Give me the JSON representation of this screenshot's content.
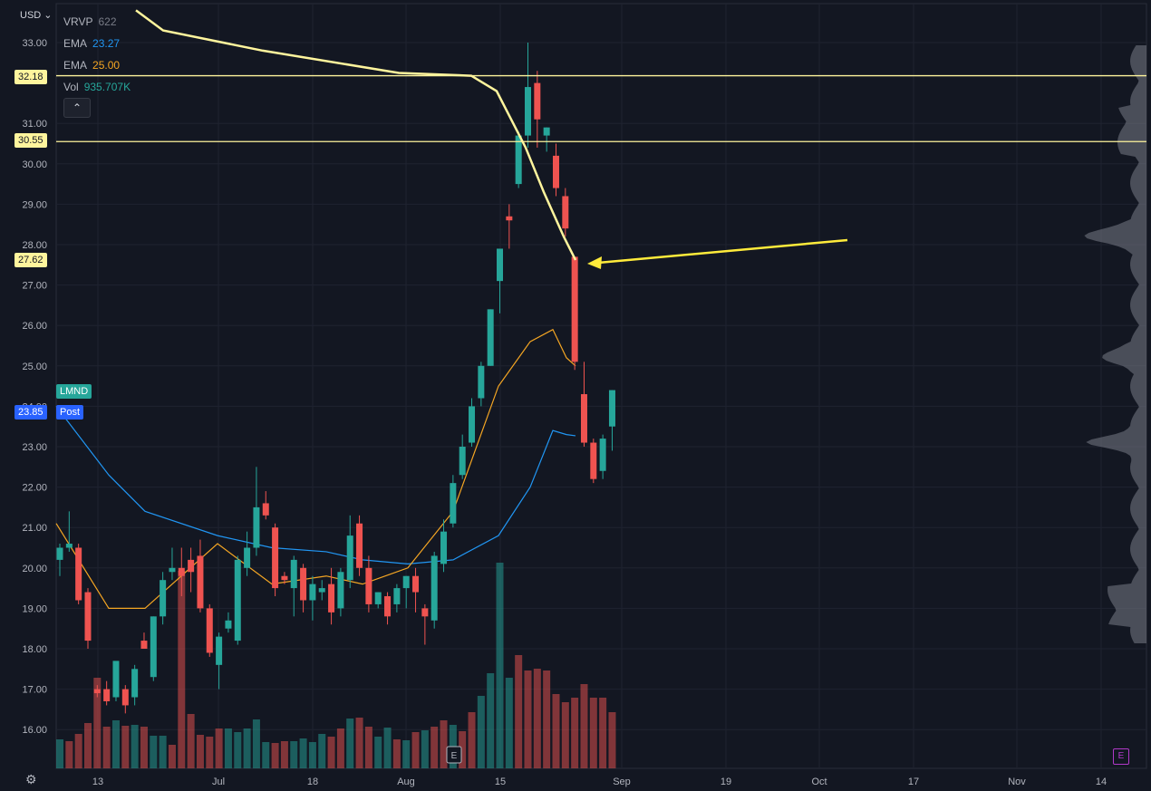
{
  "window": {
    "currency_label": "USD"
  },
  "legend": [
    {
      "label": "VRVP",
      "value": "622",
      "color": "#787b86"
    },
    {
      "label": "EMA",
      "value": "23.27",
      "color": "#2196f3"
    },
    {
      "label": "EMA",
      "value": "25.00",
      "color": "#f5a623"
    },
    {
      "label": "Vol",
      "value": "935.707K",
      "color": "#26a69a"
    }
  ],
  "price_badges": [
    {
      "text": "32.18",
      "bg": "#fff59d",
      "fg": "#131722"
    },
    {
      "text": "30.55",
      "bg": "#fff59d",
      "fg": "#131722"
    },
    {
      "text": "27.62",
      "bg": "#fff59d",
      "fg": "#131722"
    },
    {
      "text": "LMND",
      "bg": "#26a69a",
      "fg": "#ffffff"
    },
    {
      "text": "23.85",
      "bg": "#2962ff",
      "fg": "#ffffff"
    },
    {
      "text": "Post",
      "bg": "#2962ff",
      "fg": "#ffffff"
    }
  ],
  "icons": {
    "settings": "gear-icon",
    "collapse": "chevron-up-icon",
    "earnings": "E"
  },
  "colors": {
    "up": "#26a69a",
    "down": "#ef5350",
    "hline": "#fff59d",
    "ema_fast": "#2196f3",
    "ema_slow": "#f5a623",
    "annotation": "#fff59d"
  },
  "chart_data": {
    "type": "candlestick",
    "symbol": "LMND",
    "y_ticks": [
      "33.00",
      "31.00",
      "30.00",
      "29.00",
      "28.00",
      "27.00",
      "26.00",
      "25.00",
      "24.00",
      "23.00",
      "22.00",
      "21.00",
      "20.00",
      "19.00",
      "18.00",
      "17.00",
      "16.00"
    ],
    "ylim": [
      15.0,
      33.8
    ],
    "x_tick_labels": [
      "13",
      "Jul",
      "18",
      "Aug",
      "15",
      "Sep",
      "19",
      "Oct",
      "17",
      "Nov",
      "14"
    ],
    "horizontal_lines": [
      32.18,
      30.55
    ],
    "candles": [
      [
        20.2,
        20.6,
        19.8,
        20.5
      ],
      [
        20.5,
        21.4,
        20.4,
        20.6
      ],
      [
        20.5,
        20.6,
        19.1,
        19.2
      ],
      [
        19.4,
        19.5,
        18.0,
        18.2
      ],
      [
        17.0,
        17.1,
        16.8,
        16.9
      ],
      [
        17.0,
        17.2,
        16.6,
        16.7
      ],
      [
        16.8,
        17.6,
        16.7,
        17.7
      ],
      [
        17.0,
        17.1,
        16.4,
        16.6
      ],
      [
        16.8,
        17.6,
        16.6,
        17.5
      ],
      [
        18.2,
        18.4,
        18.0,
        18.0
      ],
      [
        17.3,
        18.8,
        17.2,
        18.8
      ],
      [
        18.8,
        19.9,
        18.6,
        19.7
      ],
      [
        19.9,
        20.5,
        19.7,
        20.0
      ],
      [
        20.0,
        20.5,
        19.3,
        19.8
      ],
      [
        20.2,
        20.5,
        19.4,
        19.9
      ],
      [
        20.3,
        20.7,
        18.9,
        19.0
      ],
      [
        19.0,
        19.1,
        17.8,
        17.9
      ],
      [
        17.6,
        18.4,
        17.0,
        18.3
      ],
      [
        18.5,
        18.9,
        18.4,
        18.7
      ],
      [
        18.2,
        20.3,
        18.1,
        20.2
      ],
      [
        20.0,
        20.9,
        19.8,
        20.5
      ],
      [
        20.5,
        22.5,
        20.3,
        21.5
      ],
      [
        21.6,
        21.9,
        21.2,
        21.3
      ],
      [
        21.0,
        21.1,
        19.3,
        19.5
      ],
      [
        19.8,
        19.9,
        19.6,
        19.7
      ],
      [
        19.5,
        20.3,
        18.8,
        20.2
      ],
      [
        20.0,
        20.1,
        18.9,
        19.2
      ],
      [
        19.2,
        19.8,
        18.7,
        19.6
      ],
      [
        19.4,
        19.7,
        19.2,
        19.5
      ],
      [
        19.6,
        20.0,
        18.6,
        18.9
      ],
      [
        19.0,
        20.0,
        18.8,
        19.9
      ],
      [
        19.7,
        21.3,
        19.5,
        20.8
      ],
      [
        21.1,
        21.3,
        19.8,
        20.0
      ],
      [
        20.0,
        20.3,
        18.9,
        19.1
      ],
      [
        19.1,
        19.4,
        19.0,
        19.4
      ],
      [
        19.3,
        19.4,
        18.6,
        18.8
      ],
      [
        19.1,
        19.6,
        18.9,
        19.5
      ],
      [
        19.5,
        19.8,
        19.0,
        19.8
      ],
      [
        19.8,
        20.0,
        18.9,
        19.4
      ],
      [
        19.0,
        19.1,
        18.1,
        18.8
      ],
      [
        18.7,
        20.4,
        18.5,
        20.3
      ],
      [
        20.1,
        21.2,
        19.9,
        20.9
      ],
      [
        21.1,
        22.3,
        21.0,
        22.1
      ],
      [
        22.3,
        23.3,
        22.2,
        23.0
      ],
      [
        23.1,
        24.2,
        23.0,
        24.0
      ],
      [
        24.2,
        25.1,
        24.0,
        25.0
      ],
      [
        25.0,
        26.4,
        25.0,
        26.4
      ],
      [
        27.1,
        27.8,
        26.3,
        27.9
      ],
      [
        28.7,
        29.0,
        27.9,
        28.6
      ],
      [
        29.5,
        30.8,
        29.4,
        30.7
      ],
      [
        30.7,
        33.0,
        30.4,
        31.9
      ],
      [
        32.0,
        32.3,
        30.4,
        31.1
      ],
      [
        30.7,
        30.9,
        30.3,
        30.9
      ],
      [
        30.2,
        30.5,
        29.2,
        29.4
      ],
      [
        29.2,
        29.4,
        28.2,
        28.4
      ],
      [
        27.7,
        27.7,
        24.9,
        25.1
      ],
      [
        24.3,
        25.1,
        23.0,
        23.1
      ],
      [
        23.1,
        23.2,
        22.1,
        22.2
      ],
      [
        22.4,
        23.3,
        22.2,
        23.2
      ],
      [
        23.5,
        24.4,
        22.9,
        24.4
      ]
    ],
    "volume": [
      [
        32,
        1
      ],
      [
        30,
        0
      ],
      [
        38,
        0
      ],
      [
        50,
        0
      ],
      [
        100,
        0
      ],
      [
        46,
        0
      ],
      [
        53,
        1
      ],
      [
        47,
        0
      ],
      [
        48,
        1
      ],
      [
        46,
        0
      ],
      [
        36,
        1
      ],
      [
        36,
        1
      ],
      [
        26,
        0
      ],
      [
        218,
        0
      ],
      [
        60,
        0
      ],
      [
        37,
        0
      ],
      [
        35,
        0
      ],
      [
        44,
        0
      ],
      [
        44,
        1
      ],
      [
        40,
        1
      ],
      [
        44,
        1
      ],
      [
        54,
        1
      ],
      [
        29,
        1
      ],
      [
        28,
        0
      ],
      [
        30,
        0
      ],
      [
        30,
        1
      ],
      [
        33,
        1
      ],
      [
        29,
        1
      ],
      [
        38,
        1
      ],
      [
        35,
        0
      ],
      [
        44,
        0
      ],
      [
        55,
        1
      ],
      [
        56,
        0
      ],
      [
        46,
        0
      ],
      [
        35,
        1
      ],
      [
        45,
        1
      ],
      [
        32,
        0
      ],
      [
        31,
        1
      ],
      [
        40,
        0
      ],
      [
        42,
        1
      ],
      [
        46,
        0
      ],
      [
        53,
        0
      ],
      [
        48,
        1
      ],
      [
        41,
        0
      ],
      [
        62,
        0
      ],
      [
        80,
        1
      ],
      [
        105,
        1
      ],
      [
        227,
        1
      ],
      [
        100,
        1
      ],
      [
        125,
        0
      ],
      [
        108,
        0
      ],
      [
        110,
        0
      ],
      [
        108,
        0
      ],
      [
        82,
        0
      ],
      [
        73,
        0
      ],
      [
        78,
        0
      ],
      [
        93,
        0
      ],
      [
        78,
        0
      ],
      [
        78,
        0
      ],
      [
        62,
        0
      ]
    ],
    "ema_fast": [
      24.0,
      22.3,
      21.4,
      20.8,
      20.5,
      20.4,
      20.2,
      20.1,
      20.2,
      20.8,
      22.0,
      23.4,
      23.3,
      23.27
    ],
    "ema_slow": [
      21.1,
      19.0,
      19.0,
      20.6,
      19.6,
      19.8,
      19.6,
      20.0,
      21.4,
      24.5,
      25.6,
      25.9,
      25.2,
      25.0
    ],
    "annotation_line": [
      33.8,
      33.3,
      32.8,
      32.25,
      32.18,
      31.8,
      30.4,
      29.3,
      28.2,
      27.62
    ],
    "annotation_label": "27.62"
  }
}
